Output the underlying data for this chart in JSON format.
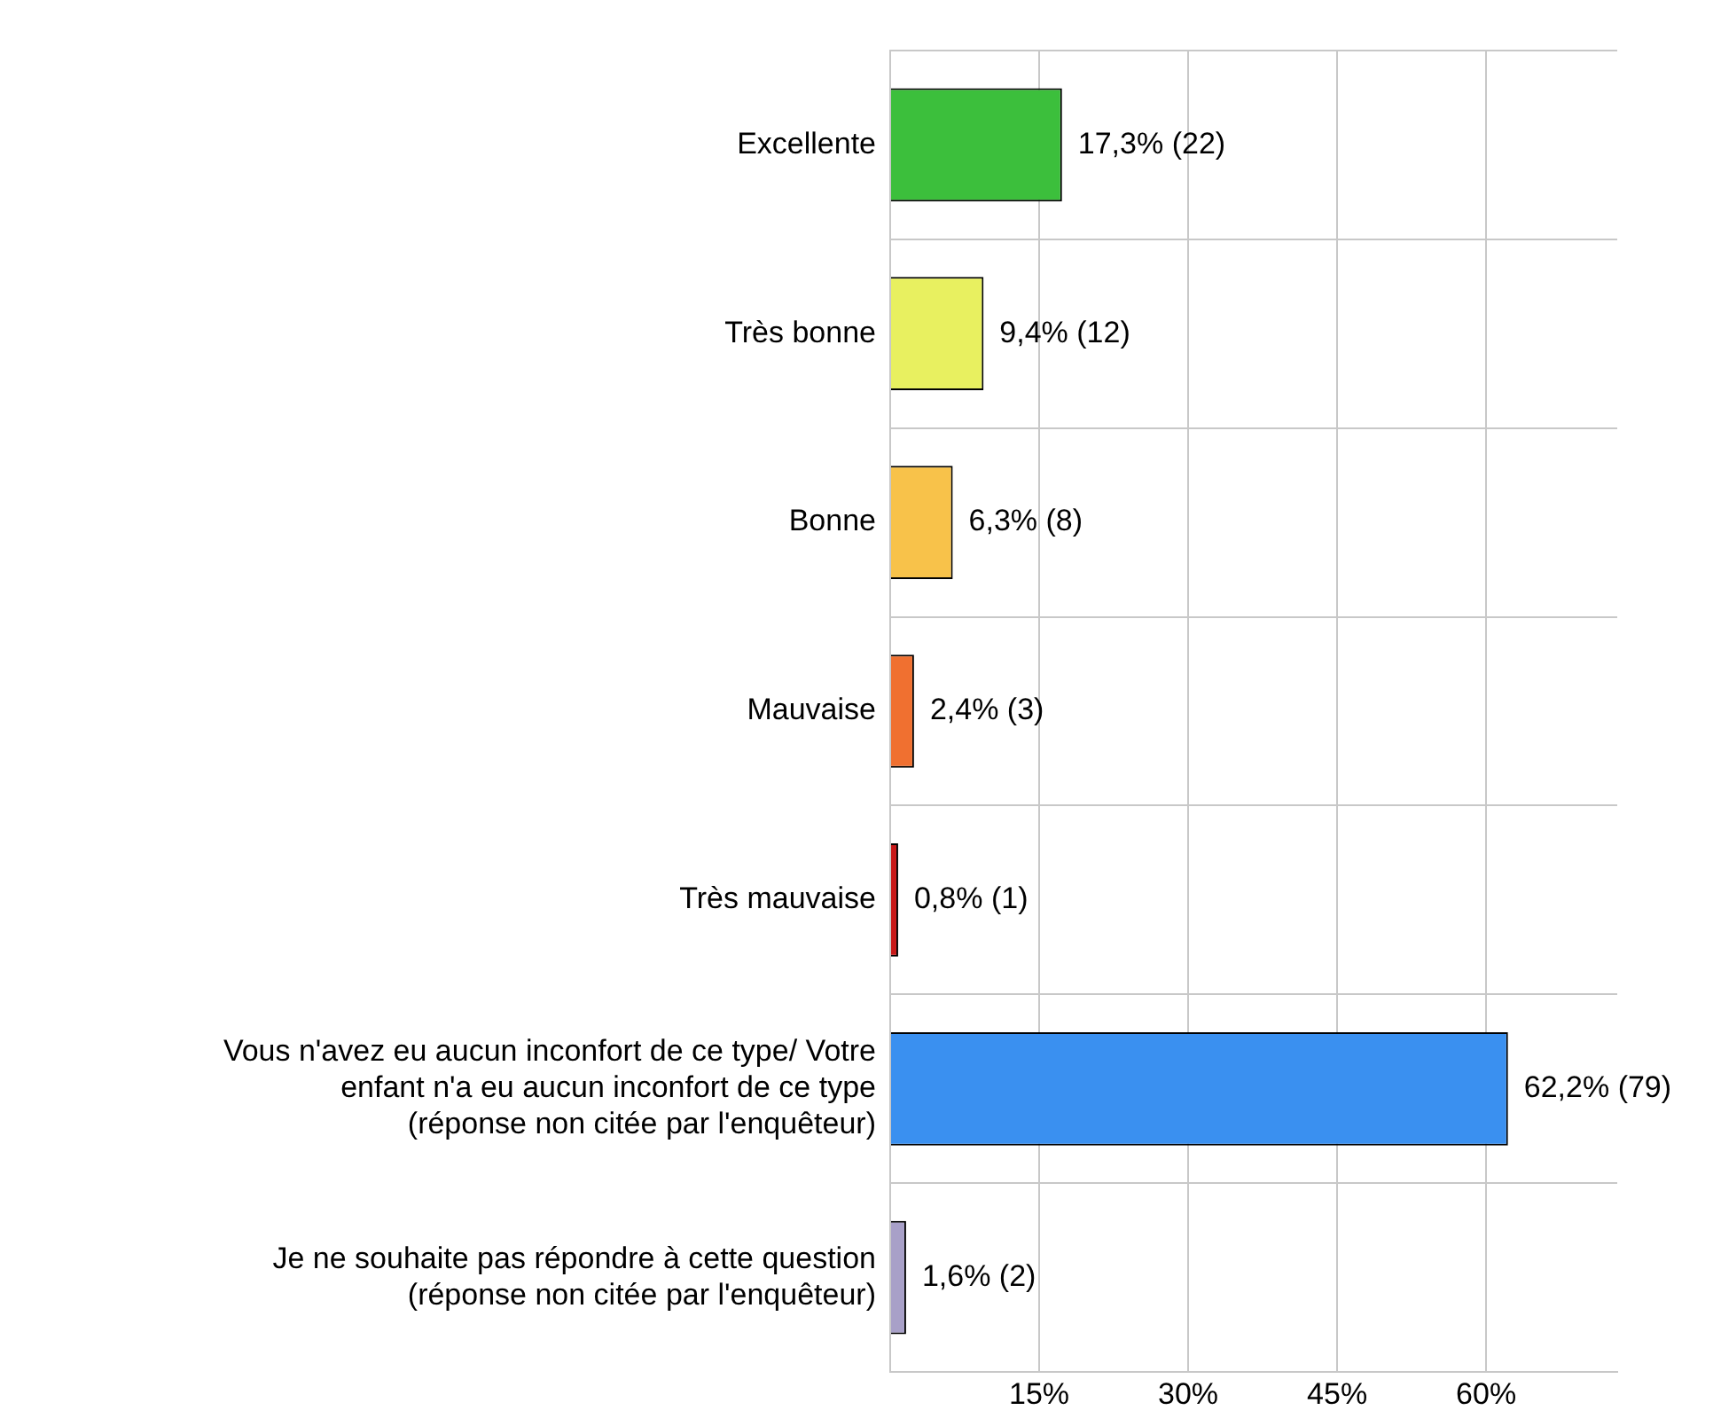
{
  "chart_data": {
    "type": "bar",
    "orientation": "horizontal",
    "categories": [
      "Excellente",
      "Très bonne",
      "Bonne",
      "Mauvaise",
      "Très mauvaise",
      "Vous n'avez eu aucun inconfort de ce type/ Votre\nenfant n'a eu aucun inconfort de ce type\n(réponse non citée par l'enquêteur)",
      "Je ne souhaite pas répondre à cette question\n(réponse non citée par l'enquêteur)"
    ],
    "values": [
      17.3,
      9.4,
      6.3,
      2.4,
      0.8,
      62.2,
      1.6
    ],
    "colors": [
      "#3cbf3c",
      "#e8f060",
      "#f8c24a",
      "#f07030",
      "#c81818",
      "#3a90f0",
      "#a8a0c8"
    ],
    "value_labels": [
      "17,3% (22)",
      "9,4% (12)",
      "6,3% (8)",
      "2,4% (3)",
      "0,8% (1)",
      "62,2% (79)",
      "1,6% (2)"
    ],
    "xlim": [
      0,
      73.2
    ],
    "xticks": [
      {
        "value": 0,
        "label": null
      },
      {
        "value": 15,
        "label": "15%"
      },
      {
        "value": 30,
        "label": "30%"
      },
      {
        "value": 45,
        "label": "45%"
      },
      {
        "value": 60,
        "label": "60%"
      }
    ],
    "grid": true,
    "legend": false
  }
}
